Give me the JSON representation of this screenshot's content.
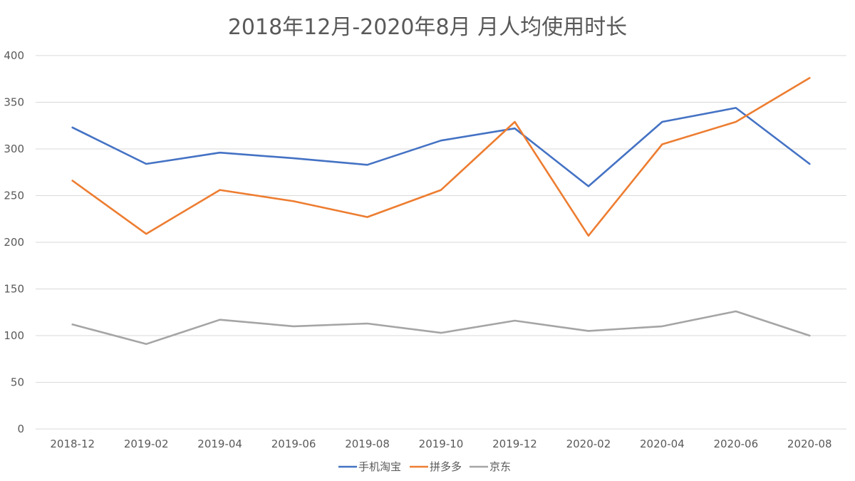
{
  "chart_data": {
    "type": "line",
    "title": "2018年12月-2020年8月 月人均使用时长",
    "xlabel": "",
    "ylabel": "",
    "categories": [
      "2018-12",
      "2019-02",
      "2019-04",
      "2019-06",
      "2019-08",
      "2019-10",
      "2019-12",
      "2020-02",
      "2020-04",
      "2020-06",
      "2020-08"
    ],
    "y_ticks": [
      0,
      50,
      100,
      150,
      200,
      250,
      300,
      350,
      400
    ],
    "ylim": [
      0,
      400
    ],
    "grid": true,
    "legend_position": "bottom",
    "series": [
      {
        "name": "手机淘宝",
        "color": "#4472c4",
        "values": [
          323,
          284,
          296,
          290,
          283,
          309,
          322,
          260,
          329,
          344,
          284
        ]
      },
      {
        "name": "拼多多",
        "color": "#ed7d31",
        "values": [
          266,
          209,
          256,
          244,
          227,
          256,
          329,
          207,
          305,
          329,
          376
        ]
      },
      {
        "name": "京东",
        "color": "#a5a5a5",
        "values": [
          112,
          91,
          117,
          110,
          113,
          103,
          116,
          105,
          110,
          126,
          100
        ]
      }
    ]
  }
}
